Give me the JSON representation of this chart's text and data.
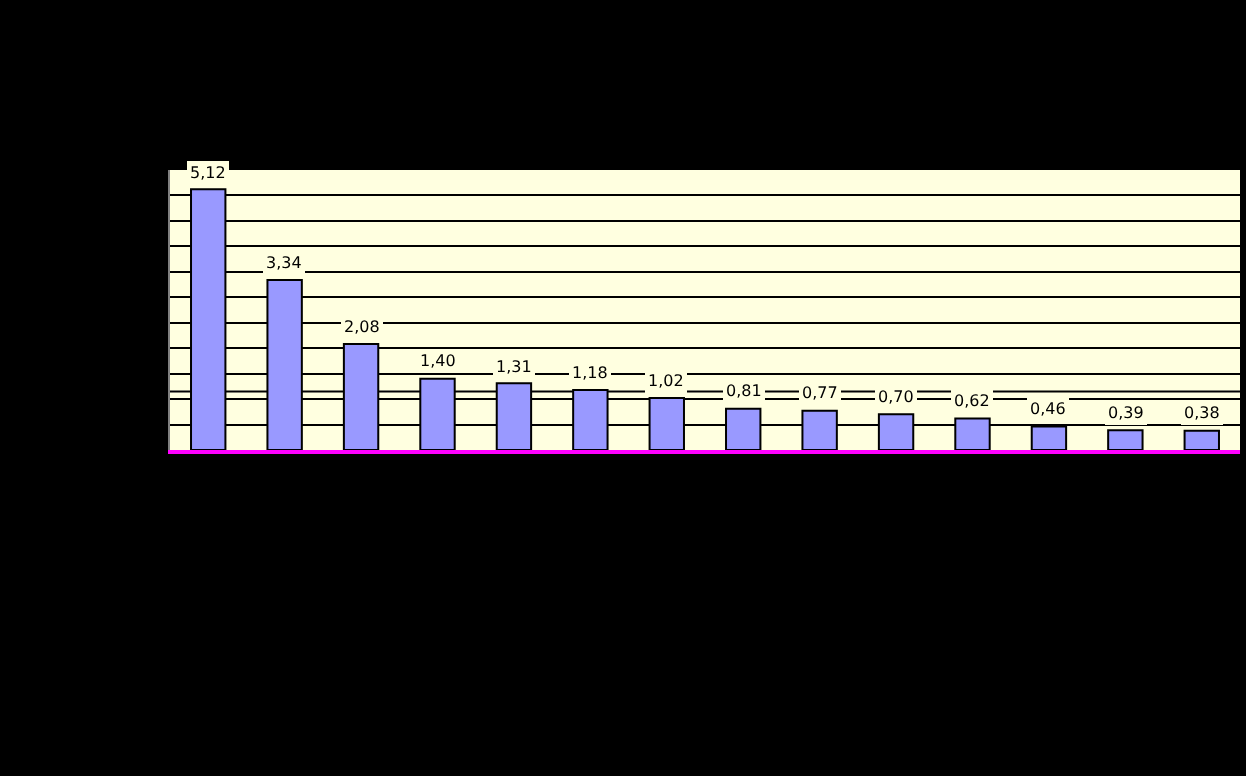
{
  "chart_data": {
    "type": "bar",
    "categories": [
      null,
      null,
      null,
      null,
      null,
      null,
      null,
      null,
      null,
      null,
      null,
      null,
      null,
      null
    ],
    "values": [
      5.12,
      3.34,
      2.08,
      1.4,
      1.31,
      1.18,
      1.02,
      0.81,
      0.77,
      0.7,
      0.62,
      0.46,
      0.39,
      0.38
    ],
    "value_labels": [
      "5,12",
      "3,34",
      "2,08",
      "1,40",
      "1,31",
      "1,18",
      "1,02",
      "0,81",
      "0,77",
      "0,70",
      "0,62",
      "0,46",
      "0,39",
      "0,38"
    ],
    "color": "#9999ff",
    "ylim": [
      0,
      5.5
    ],
    "yticks": [
      {
        "value": 0,
        "label": null
      },
      {
        "value": 0.5,
        "label": null
      },
      {
        "value": 1,
        "label": null
      },
      {
        "value": 1.5,
        "label": null
      },
      {
        "value": 2,
        "label": null
      },
      {
        "value": 2.5,
        "label": null
      },
      {
        "value": 3,
        "label": null
      },
      {
        "value": 3.5,
        "label": null
      },
      {
        "value": 4,
        "label": null
      },
      {
        "value": 4.5,
        "label": null
      },
      {
        "value": 5,
        "label": null
      },
      {
        "value": 5.5,
        "label": null
      }
    ],
    "ref_lines": [
      {
        "axis": "y",
        "value": 1.15,
        "color": "#000000"
      }
    ],
    "grid": "y",
    "legend": false
  }
}
